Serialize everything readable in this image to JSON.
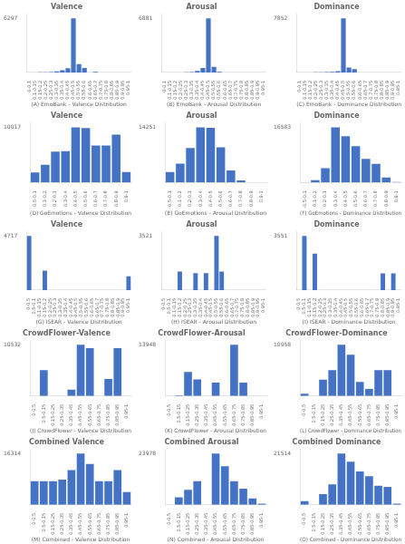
{
  "chart_data": [
    {
      "type": "bar",
      "title": "Valence",
      "xlabel": "(A) EmoBank - Valence Distribution",
      "categories": [
        "0-0.1",
        "0.1-0.15",
        "0.15-0.2",
        "0.2-0.25",
        "0.25-0.3",
        "0.3-0.35",
        "0.35-0.4",
        "0.4-0.45",
        "0.45-0.5",
        "0.5-0.55",
        "0.55-0.6",
        "0.6-0.65",
        "0.65-0.7",
        "0.7-0.75",
        "0.75-0.8",
        "0.8-0.85",
        "0.85-0.9",
        "0.9-0.95",
        "0.95-1"
      ],
      "values": [
        0,
        0,
        10,
        20,
        50,
        130,
        250,
        480,
        6297,
        980,
        510,
        0,
        80,
        0,
        0,
        0,
        0,
        0,
        0
      ],
      "color": "#4472C4",
      "ylim": [
        0,
        6800.76
      ],
      "yticks": [
        6297
      ],
      "grid": false
    },
    {
      "type": "bar",
      "title": "Arousal",
      "xlabel": "(B) EmoBank - Arousal Distribution",
      "categories": [
        "0-0.1",
        "0.1-0.15",
        "0.15-0.2",
        "0.2-0.25",
        "0.25-0.3",
        "0.3-0.35",
        "0.35-0.4",
        "0.4-0.45",
        "0.45-0.5",
        "0.5-0.55",
        "0.55-0.6",
        "0.6-0.65",
        "0.65-0.7",
        "0.7-0.75",
        "0.75-0.8",
        "0.8-0.85",
        "0.85-0.9",
        "0.9-0.95",
        "0.95-1"
      ],
      "values": [
        0,
        0,
        0,
        0,
        15,
        55,
        180,
        560,
        6881,
        720,
        90,
        0,
        0,
        0,
        0,
        0,
        0,
        0,
        0
      ],
      "color": "#4472C4",
      "ylim": [
        0,
        7431.48
      ],
      "yticks": [
        6881
      ],
      "grid": false
    },
    {
      "type": "bar",
      "title": "Dominance",
      "xlabel": "(C) EmoBank - Dominance Distribution",
      "categories": [
        "0-0.1",
        "0.1-0.15",
        "0.15-0.2",
        "0.2-0.25",
        "0.25-0.3",
        "0.3-0.35",
        "0.35-0.4",
        "0.4-0.45",
        "0.45-0.5",
        "0.5-0.55",
        "0.55-0.6",
        "0.6-0.65",
        "0.65-0.7",
        "0.7-0.75",
        "0.75-0.8",
        "0.8-0.85",
        "0.85-0.9",
        "0.9-0.95",
        "0.95-1"
      ],
      "values": [
        0,
        0,
        0,
        8,
        25,
        60,
        90,
        200,
        7852,
        700,
        470,
        0,
        0,
        0,
        0,
        0,
        0,
        0,
        0
      ],
      "color": "#4472C4",
      "ylim": [
        0,
        8480.16
      ],
      "yticks": [
        7852
      ],
      "grid": false
    },
    {
      "type": "bar",
      "title": "Valence",
      "xlabel": "(D) GoEmotions - Valence Distribution",
      "categories": [
        "-0.5-0.1",
        "0.1-0.2",
        "0.2-0.3",
        "0.3-0.4",
        "0.4-0.5",
        "0.5-0.6",
        "0.6-0.7",
        "0.7-0.8",
        "0.8-0.9",
        "0.9-1"
      ],
      "values": [
        1800,
        3200,
        5600,
        5700,
        10017,
        9900,
        6700,
        6700,
        8700,
        1900
      ],
      "color": "#4472C4",
      "ylim": [
        0,
        10818.36
      ],
      "yticks": [
        10017
      ],
      "grid": false
    },
    {
      "type": "bar",
      "title": "Arousal",
      "xlabel": "(E) GoEmotions - Arousal Distribution",
      "categories": [
        "-0.5-0.1",
        "0.1-0.2",
        "0.2-0.3",
        "0.3-0.4",
        "0.4-0.5",
        "0.5-0.6",
        "0.6-0.7",
        "0.7-0.8",
        "0.8-0.9",
        "0.9-1"
      ],
      "values": [
        2700,
        4900,
        8900,
        14251,
        14100,
        9100,
        3100,
        550,
        0,
        15
      ],
      "color": "#4472C4",
      "ylim": [
        0,
        15391.08
      ],
      "yticks": [
        14251
      ],
      "grid": false
    },
    {
      "type": "bar",
      "title": "Dominance",
      "xlabel": "(F) GoEmotions - Dominance Distribution",
      "categories": [
        "-0.5-0.1",
        "0.1-0.2",
        "0.2-0.3",
        "0.3-0.4",
        "0.4-0.5",
        "0.5-0.6",
        "0.6-0.7",
        "0.7-0.8",
        "0.8-0.9",
        "0.9-1"
      ],
      "values": [
        100,
        700,
        4300,
        16583,
        13900,
        10900,
        7100,
        5600,
        1500,
        120
      ],
      "color": "#4472C4",
      "ylim": [
        0,
        17909.64
      ],
      "yticks": [
        16583
      ],
      "grid": false
    },
    {
      "type": "bar",
      "title": "Valence",
      "xlabel": "(G) ISEAR - Valence Distribution",
      "categories": [
        "0-0.5",
        "0.5-0.1",
        "0.1-0.15",
        "0.15-0.2",
        "0.2-0.25",
        "0.25-0.3",
        "0.3-0.35",
        "0.35-0.4",
        "0.4-0.45",
        "0.45-0.5",
        "0.5-0.55",
        "0.55-0.6",
        "0.6-0.65",
        "0.65-0.7",
        "0.7-0.75",
        "0.75-0.8",
        "0.8-0.85",
        "0.85-0.9",
        "0.9-0.95",
        "0.95-1"
      ],
      "values": [
        4717,
        0,
        0,
        1700,
        0,
        0,
        0,
        0,
        0,
        0,
        0,
        0,
        0,
        0,
        0,
        0,
        0,
        0,
        0,
        1200
      ],
      "color": "#4472C4",
      "ylim": [
        0,
        5094.36
      ],
      "yticks": [
        4717
      ],
      "grid": false
    },
    {
      "type": "bar",
      "title": "Arousal",
      "xlabel": "(H) ISEAR - Arousal Distribution",
      "categories": [
        "0-0.5",
        "0.5-0.1",
        "0.1-0.15",
        "0.15-0.2",
        "0.2-0.25",
        "0.25-0.3",
        "0.3-0.35",
        "0.35-0.4",
        "0.4-0.45",
        "0.45-0.5",
        "0.5-0.55",
        "0.55-0.6",
        "0.6-0.65",
        "0.65-0.7",
        "0.7-0.75",
        "0.75-0.8",
        "0.8-0.85",
        "0.85-0.9",
        "0.9-0.95",
        "0.95-1"
      ],
      "values": [
        0,
        0,
        0,
        1200,
        0,
        0,
        1100,
        0,
        1100,
        0,
        3521,
        1200,
        0,
        0,
        0,
        0,
        0,
        0,
        0,
        0
      ],
      "color": "#4472C4",
      "ylim": [
        0,
        3802.68
      ],
      "yticks": [
        3521
      ],
      "grid": false
    },
    {
      "type": "bar",
      "title": "Dominance",
      "xlabel": "(I) ISEAR - Dominance Distribution",
      "categories": [
        "0-0.5",
        "0.5-0.1",
        "0.1-0.15",
        "0.15-0.2",
        "0.2-0.25",
        "0.25-0.3",
        "0.3-0.35",
        "0.35-0.4",
        "0.4-0.45",
        "0.45-0.5",
        "0.5-0.55",
        "0.55-0.6",
        "0.6-0.65",
        "0.65-0.7",
        "0.7-0.75",
        "0.75-0.8",
        "0.8-0.85",
        "0.85-0.9",
        "0.9-0.95",
        "0.95-1"
      ],
      "values": [
        0,
        3551,
        0,
        2400,
        0,
        0,
        0,
        0,
        0,
        0,
        0,
        0,
        0,
        0,
        0,
        0,
        1100,
        0,
        1100,
        0
      ],
      "color": "#4472C4",
      "ylim": [
        0,
        3835.08
      ],
      "yticks": [
        3551
      ],
      "grid": false
    },
    {
      "type": "bar",
      "title": "CrowdFlower-Valence",
      "xlabel": "(J) CrowdFlower - Valence Distribution",
      "categories": [
        "0-0.5",
        "0.5-0.15",
        "0.15-0.25",
        "0.25-0.35",
        "0.35-0.45",
        "0.45-0.55",
        "0.55-0.65",
        "0.65-0.75",
        "0.75-0.85",
        "0.85-0.95",
        "0.95-1"
      ],
      "values": [
        0,
        5300,
        0,
        0,
        1300,
        10532,
        9800,
        0,
        3500,
        9800,
        0
      ],
      "color": "#4472C4",
      "ylim": [
        0,
        11374.56
      ],
      "yticks": [
        10532
      ],
      "grid": false
    },
    {
      "type": "bar",
      "title": "CrowdFlower-Arousal",
      "xlabel": "(K) CrowdFlower - Arousal Distribution",
      "categories": [
        "0-0.5",
        "0.5-0.15",
        "0.15-0.25",
        "0.25-0.35",
        "0.35-0.45",
        "0.45-0.55",
        "0.55-0.65",
        "0.65-0.75",
        "0.75-0.85",
        "0.85-0.95",
        "0.95-1"
      ],
      "values": [
        0,
        200,
        6500,
        4500,
        0,
        3600,
        0,
        13948,
        3600,
        0,
        0
      ],
      "color": "#4472C4",
      "ylim": [
        0,
        15063.84
      ],
      "yticks": [
        13948
      ],
      "grid": false
    },
    {
      "type": "bar",
      "title": "CrowdFlower-Dominance",
      "xlabel": "(L) CrowdFlower - Dominance Distribution",
      "categories": [
        "0-0.5",
        "0.5-0.15",
        "0.15-0.25",
        "0.25-0.35",
        "0.35-0.45",
        "0.45-0.55",
        "0.55-0.65",
        "0.65-0.75",
        "0.75-0.85",
        "0.85-0.95",
        "0.95-1"
      ],
      "values": [
        500,
        0,
        3500,
        5500,
        10958,
        8800,
        3000,
        1500,
        5500,
        5500,
        0
      ],
      "color": "#4472C4",
      "ylim": [
        0,
        11834.64
      ],
      "yticks": [
        10958
      ],
      "grid": false
    },
    {
      "type": "bar",
      "title": "Combined Valence",
      "xlabel": "(M) Combined - Valence Distribution",
      "categories": [
        "0-0.5",
        "0.5-0.15",
        "0.15-0.25",
        "0.25-0.35",
        "0.35-0.45",
        "0.45-0.55",
        "0.55-0.65",
        "0.65-0.75",
        "0.75-0.85",
        "0.85-0.95",
        "0.95-1"
      ],
      "values": [
        7500,
        7500,
        7500,
        8000,
        11000,
        16314,
        13000,
        7500,
        7500,
        11000,
        4000
      ],
      "color": "#4472C4",
      "ylim": [
        0,
        17619.12
      ],
      "yticks": [
        16314
      ],
      "grid": false
    },
    {
      "type": "bar",
      "title": "Combined Arousal",
      "xlabel": "(N) Combined - Arousal Distribution",
      "categories": [
        "0-0.5",
        "0.5-0.15",
        "0.15-0.25",
        "0.25-0.35",
        "0.35-0.45",
        "0.45-0.55",
        "0.55-0.65",
        "0.65-0.75",
        "0.75-0.85",
        "0.85-0.95",
        "0.95-1"
      ],
      "values": [
        0,
        3500,
        7000,
        11000,
        0,
        23978,
        18000,
        11000,
        7500,
        3000,
        500
      ],
      "color": "#4472C4",
      "ylim": [
        0,
        25896.24
      ],
      "yticks": [
        23978
      ],
      "grid": false
    },
    {
      "type": "bar",
      "title": "Combined Dominance",
      "xlabel": "(O) Combined - Dominance Distribution",
      "categories": [
        "0-0.5",
        "0.5-0.15",
        "0.15-0.25",
        "0.25-0.35",
        "0.35-0.45",
        "0.45-0.55",
        "0.55-0.65",
        "0.65-0.75",
        "0.75-0.85",
        "0.85-0.95",
        "0.95-1"
      ],
      "values": [
        1500,
        0,
        4500,
        8500,
        21514,
        18000,
        14000,
        12000,
        8000,
        7500,
        500
      ],
      "color": "#4472C4",
      "ylim": [
        0,
        23235.12
      ],
      "yticks": [
        21514
      ],
      "grid": false
    }
  ]
}
